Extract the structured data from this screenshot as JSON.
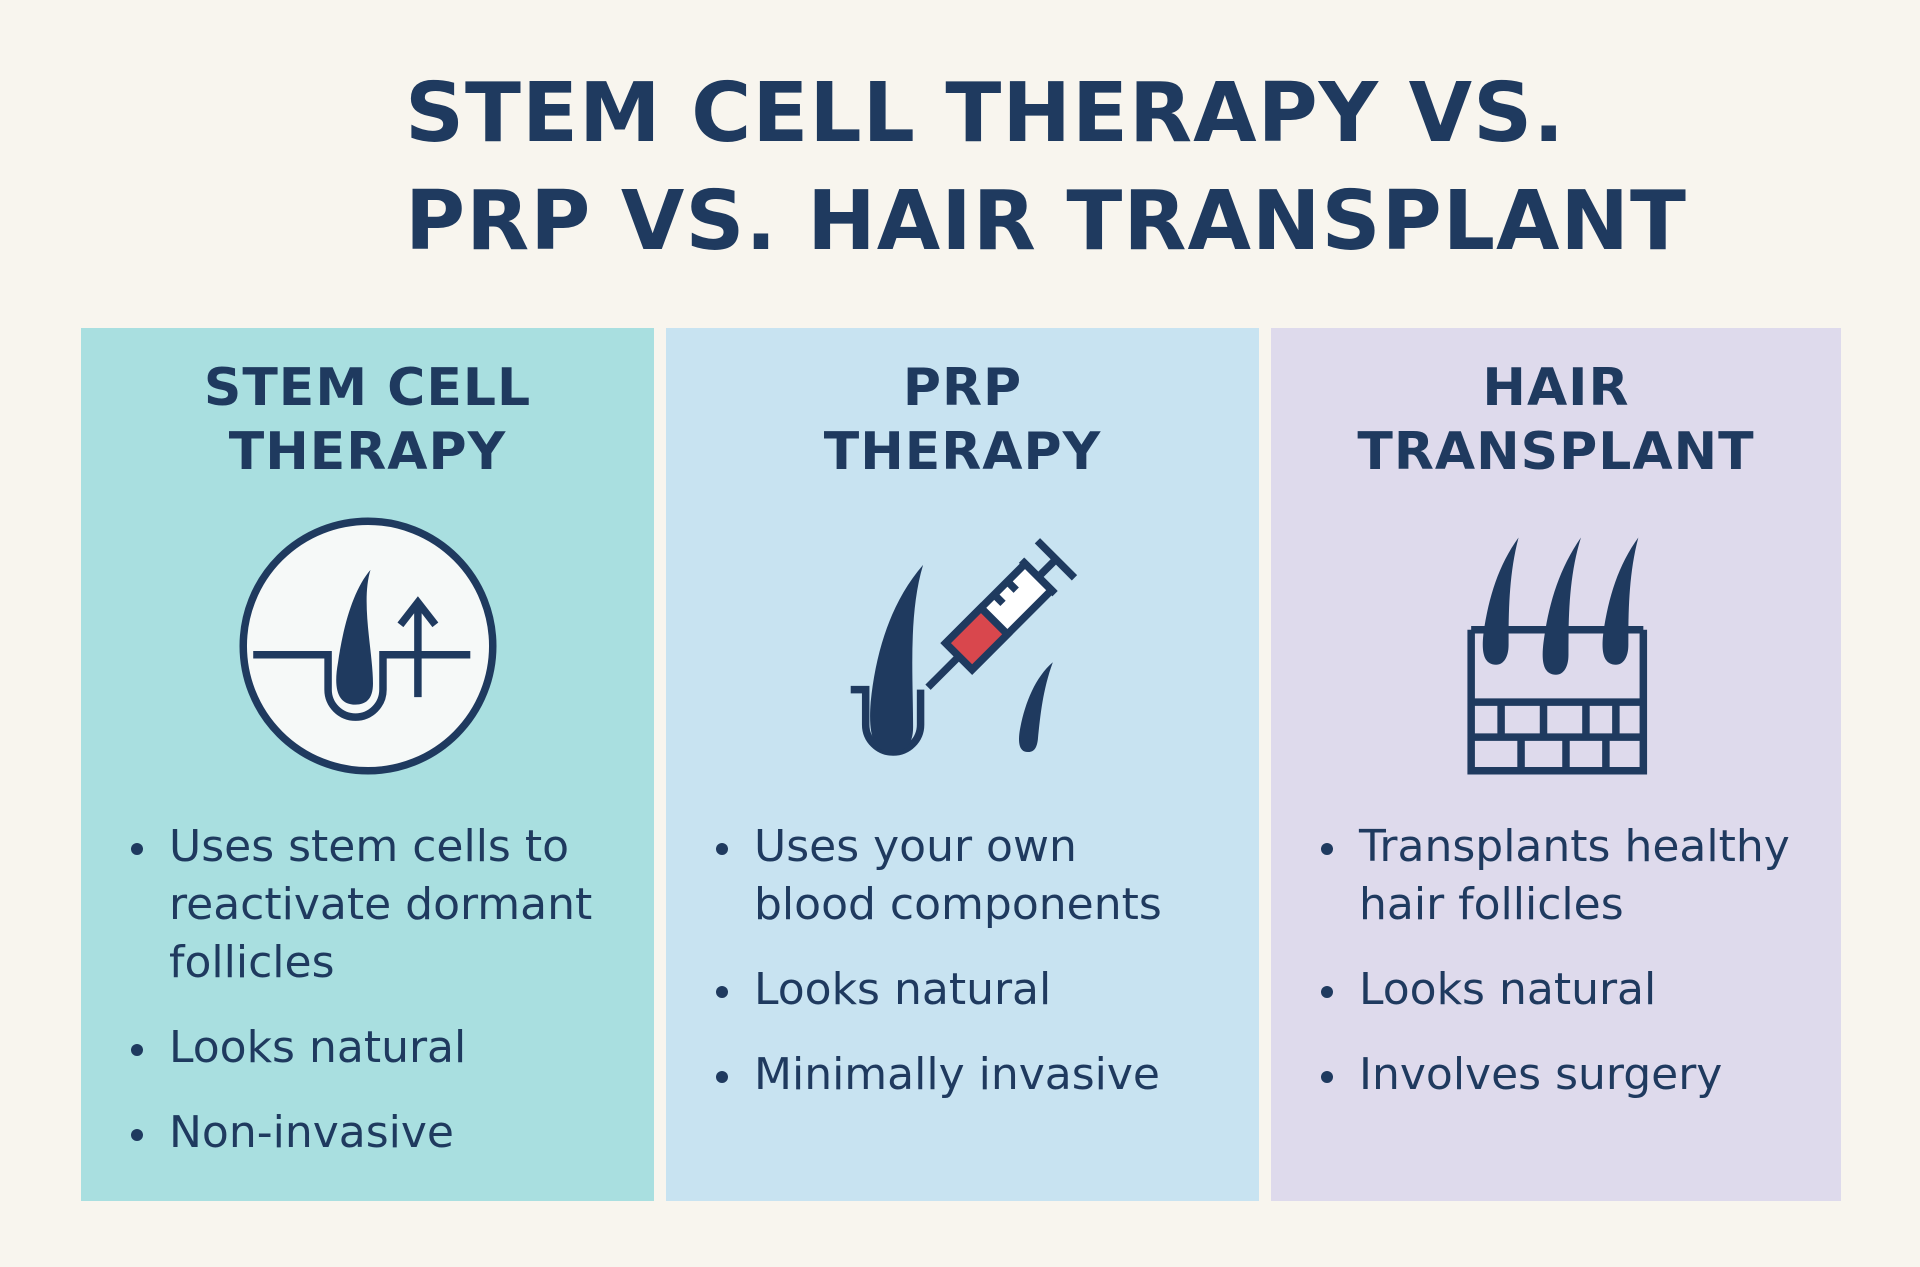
{
  "title": [
    "STEM CELL THERAPY VS.",
    "PRP VS. HAIR TRANSPLANT"
  ],
  "columns": [
    {
      "heading": [
        "STEM CELL",
        "THERAPY"
      ],
      "bullets": [
        [
          "Uses stem cells to",
          "reactivate dormant",
          "follicles"
        ],
        [
          "Looks natural"
        ],
        [
          "Non-invasive"
        ]
      ]
    },
    {
      "heading": [
        "PRP",
        "THERAPY"
      ],
      "bullets": [
        [
          "Uses your own",
          "blood components"
        ],
        [
          "Looks natural"
        ],
        [
          "Minimally invasive"
        ]
      ]
    },
    {
      "heading": [
        "HAIR",
        "TRANSPLANT"
      ],
      "bullets": [
        [
          "Transplants healthy",
          "hair follicles"
        ],
        [
          "Looks natural"
        ],
        [
          "Involves surgery"
        ]
      ]
    }
  ]
}
